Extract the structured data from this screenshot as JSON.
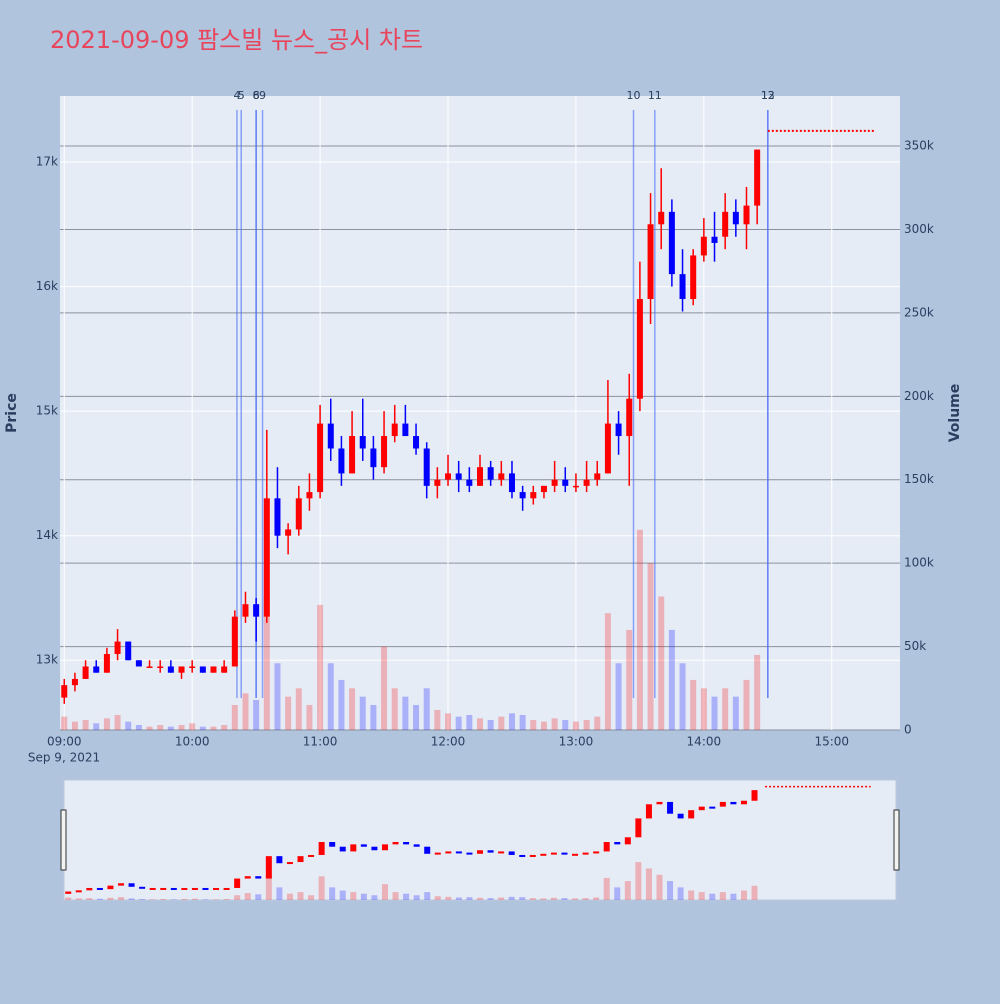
{
  "chart_data": {
    "type": "candlestick",
    "title": "2021-09-09 팜스빌 뉴스_공시 차트",
    "ylabel": "Price",
    "y2label": "Volume",
    "x_date_label": "Sep 9, 2021",
    "up_color": "#ff0000",
    "down_color": "#0000ff",
    "news_color": "#4a6cf7",
    "x": [
      "09:00",
      "09:05",
      "09:10",
      "09:15",
      "09:20",
      "09:25",
      "09:30",
      "09:35",
      "09:40",
      "09:45",
      "09:50",
      "09:55",
      "10:00",
      "10:05",
      "10:10",
      "10:15",
      "10:20",
      "10:25",
      "10:30",
      "10:35",
      "10:40",
      "10:45",
      "10:50",
      "10:55",
      "11:00",
      "11:05",
      "11:10",
      "11:15",
      "11:20",
      "11:25",
      "11:30",
      "11:35",
      "11:40",
      "11:45",
      "11:50",
      "11:55",
      "12:00",
      "12:05",
      "12:10",
      "12:15",
      "12:20",
      "12:25",
      "12:30",
      "12:35",
      "12:40",
      "12:45",
      "12:50",
      "12:55",
      "13:00",
      "13:05",
      "13:10",
      "13:15",
      "13:20",
      "13:25",
      "13:30",
      "13:35",
      "13:40",
      "13:45",
      "13:50",
      "13:55",
      "14:00",
      "14:05",
      "14:10",
      "14:15",
      "14:20",
      "14:25"
    ],
    "open": [
      12700,
      12800,
      12850,
      12950,
      12900,
      13050,
      13150,
      13000,
      12950,
      12950,
      12950,
      12900,
      12950,
      12950,
      12900,
      12900,
      12950,
      13350,
      13450,
      13350,
      14300,
      14000,
      14050,
      14300,
      14350,
      14900,
      14700,
      14500,
      14800,
      14700,
      14550,
      14800,
      14900,
      14800,
      14700,
      14400,
      14450,
      14500,
      14450,
      14400,
      14550,
      14450,
      14500,
      14350,
      14300,
      14350,
      14400,
      14450,
      14400,
      14400,
      14450,
      14500,
      14900,
      14800,
      15100,
      15900,
      16500,
      16600,
      16100,
      15900,
      16250,
      16400,
      16400,
      16600,
      16500,
      16650
    ],
    "high": [
      12850,
      12900,
      13000,
      13000,
      13100,
      13250,
      13150,
      13000,
      13000,
      13000,
      13000,
      12950,
      13000,
      12950,
      12950,
      13000,
      13400,
      13550,
      13500,
      14850,
      14550,
      14100,
      14400,
      14500,
      15050,
      15100,
      14800,
      15000,
      15100,
      14800,
      15000,
      15050,
      15050,
      14900,
      14750,
      14550,
      14650,
      14600,
      14550,
      14650,
      14600,
      14600,
      14600,
      14400,
      14400,
      14400,
      14600,
      14550,
      14500,
      14600,
      14600,
      15250,
      15000,
      15300,
      16200,
      16750,
      16950,
      16700,
      16300,
      16300,
      16550,
      16600,
      16750,
      16700,
      16800,
      17100
    ],
    "low": [
      12650,
      12750,
      12850,
      12900,
      12900,
      13000,
      13000,
      12950,
      12950,
      12900,
      12900,
      12850,
      12900,
      12900,
      12900,
      12900,
      12950,
      13300,
      13150,
      13300,
      13900,
      13850,
      14000,
      14200,
      14300,
      14600,
      14400,
      14500,
      14600,
      14450,
      14500,
      14750,
      14800,
      14650,
      14300,
      14300,
      14400,
      14350,
      14350,
      14400,
      14400,
      14400,
      14300,
      14200,
      14250,
      14300,
      14350,
      14350,
      14350,
      14350,
      14400,
      14500,
      14650,
      14400,
      15000,
      15700,
      16300,
      16000,
      15800,
      15850,
      16200,
      16200,
      16300,
      16400,
      16300,
      16500
    ],
    "close": [
      12800,
      12850,
      12950,
      12900,
      13050,
      13150,
      13000,
      12950,
      12950,
      12950,
      12900,
      12950,
      12950,
      12900,
      12950,
      12950,
      13350,
      13450,
      13350,
      14300,
      14000,
      14050,
      14300,
      14350,
      14900,
      14700,
      14500,
      14800,
      14700,
      14550,
      14800,
      14900,
      14800,
      14700,
      14400,
      14450,
      14500,
      14450,
      14400,
      14550,
      14450,
      14500,
      14350,
      14300,
      14350,
      14400,
      14450,
      14400,
      14400,
      14450,
      14500,
      14900,
      14800,
      15100,
      15900,
      16500,
      16600,
      16100,
      15900,
      16250,
      16400,
      16350,
      16600,
      16500,
      16650,
      17100
    ],
    "volume": [
      8000,
      5000,
      6000,
      4000,
      7000,
      9000,
      5000,
      3000,
      2000,
      3000,
      2000,
      3000,
      4000,
      2000,
      2000,
      3000,
      15000,
      22000,
      18000,
      80000,
      40000,
      20000,
      25000,
      15000,
      75000,
      40000,
      30000,
      25000,
      20000,
      15000,
      50000,
      25000,
      20000,
      15000,
      25000,
      12000,
      10000,
      8000,
      9000,
      7000,
      6000,
      8000,
      10000,
      9000,
      6000,
      5000,
      7000,
      6000,
      5000,
      6000,
      8000,
      70000,
      40000,
      60000,
      120000,
      100000,
      80000,
      60000,
      40000,
      30000,
      25000,
      20000,
      25000,
      20000,
      30000,
      45000
    ],
    "news": [
      {
        "label": "4",
        "x": "10:21"
      },
      {
        "label": "5",
        "x": "10:23"
      },
      {
        "label": "6",
        "x": "10:30"
      },
      {
        "label": "8",
        "x": "10:30"
      },
      {
        "label": "9",
        "x": "10:33"
      },
      {
        "label": "10",
        "x": "13:27"
      },
      {
        "label": "11",
        "x": "13:37"
      },
      {
        "label": "12",
        "x": "14:30"
      },
      {
        "label": "13",
        "x": "14:30"
      }
    ],
    "after_hours": {
      "x": [
        "14:30",
        "15:20"
      ],
      "values": [
        17250,
        17250
      ],
      "color": "#ff0000"
    },
    "xlim": [
      "08:58",
      "15:32"
    ],
    "xticks": [
      "09:00",
      "10:00",
      "11:00",
      "12:00",
      "13:00",
      "14:00",
      "15:00"
    ],
    "ylim": [
      12440,
      17530
    ],
    "yticks": [
      {
        "value": 13000,
        "label": "13k"
      },
      {
        "value": 14000,
        "label": "14k"
      },
      {
        "value": 15000,
        "label": "15k"
      },
      {
        "value": 16000,
        "label": "16k"
      },
      {
        "value": 17000,
        "label": "17k"
      }
    ],
    "y2lim": [
      0,
      380000
    ],
    "y2ticks": [
      0,
      {
        "value": 50000,
        "label": "50k"
      },
      {
        "value": 100000,
        "label": "100k"
      },
      {
        "value": 150000,
        "label": "150k"
      },
      {
        "value": 200000,
        "label": "200k"
      },
      {
        "value": 250000,
        "label": "250k"
      },
      {
        "value": 300000,
        "label": "300k"
      },
      {
        "value": 350000,
        "label": "350k"
      }
    ]
  }
}
